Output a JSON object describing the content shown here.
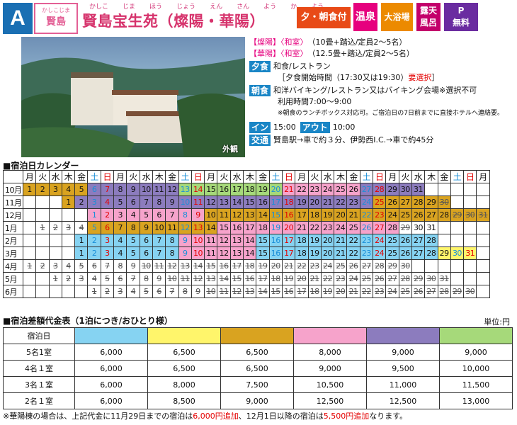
{
  "header": {
    "tag": "A",
    "area_ruby": "かしこじま",
    "area": "賢島",
    "title_ruby": [
      "かしこ",
      "じま",
      "ほう",
      "じょう",
      "えん",
      "さん",
      "よう",
      "か",
      "よう"
    ],
    "title": "賢島宝生苑（燦陽・華陽）",
    "badges": [
      "夕・朝食付",
      "温泉",
      "大浴場",
      "露天",
      "風呂",
      "P",
      "無料"
    ]
  },
  "photo_caption": "外観",
  "info": {
    "rooms": [
      {
        "label": "【燦陽】〈和室〉",
        "text": "（10畳+踏込/定員2～5名）"
      },
      {
        "label": "【華陽】〈和室〉",
        "text": "（12.5畳+踏込/定員2～5名）"
      }
    ],
    "dinner_label": "夕食",
    "dinner": "和食/レストラン",
    "dinner_time": "［夕食開始時間（17:30又は19:30）",
    "dinner_req": "要選択",
    "dinner_end": "］",
    "breakfast_label": "朝食",
    "breakfast": "和洋バイキング/レストラン又はバイキング会場※選択不可",
    "breakfast_time": "利用時間7:00～9:00",
    "breakfast_note": "※朝食のランチボックス対応可。ご宿泊日の7日前までに直接ホテルへ連絡要。",
    "in_label": "イン",
    "in_time": "15:00",
    "out_label": "アウト",
    "out_time": "10:00",
    "access_label": "交通",
    "access": "賢島駅→車で約３分、伊勢西I.C.→車で約45分"
  },
  "calendar": {
    "title": "■宿泊日カレンダー",
    "weekdays": [
      "月",
      "火",
      "水",
      "木",
      "金",
      "土",
      "日",
      "月",
      "火",
      "水",
      "木",
      "金",
      "土",
      "日",
      "月",
      "火",
      "水",
      "木",
      "金",
      "土",
      "日",
      "月",
      "火",
      "水",
      "木",
      "金",
      "土",
      "日",
      "月",
      "火",
      "水",
      "木",
      "金",
      "土",
      "日",
      "月"
    ],
    "months": [
      {
        "name": "10月",
        "offset": 0,
        "days": 31,
        "colors": "33333555555566666666444444555555",
        "cross": []
      },
      {
        "name": "11月",
        "offset": 3,
        "days": 30,
        "colors": "355555555555555555555555333333",
        "cross": [
          30
        ]
      },
      {
        "name": "12月",
        "offset": 5,
        "days": 31,
        "colors": "44444444433333333333333333333333",
        "cross": [
          29,
          30,
          31
        ]
      },
      {
        "name": "1月",
        "offset": 1,
        "days": 31,
        "colors": "0000333333333344444444444444000",
        "cross": [
          1,
          2,
          3,
          4,
          29
        ]
      },
      {
        "name": "2月",
        "offset": 4,
        "days": 28,
        "colors": "1111111144444411111111111111",
        "cross": []
      },
      {
        "name": "3月",
        "offset": 4,
        "days": 31,
        "colors": "1111111144444411111111111111222",
        "cross": []
      },
      {
        "name": "4月",
        "offset": 0,
        "days": 30,
        "colors": "000000000000000000000000000000",
        "cross": "all"
      },
      {
        "name": "5月",
        "offset": 2,
        "days": 31,
        "colors": "0000000000000000000000000000000",
        "cross": "all"
      },
      {
        "name": "6月",
        "offset": 5,
        "days": 30,
        "colors": "000000000000000000000000000000",
        "cross": "all"
      }
    ]
  },
  "price": {
    "title": "■宿泊差額代金表（1泊につき/おひとり様）",
    "unit": "単位:円",
    "header": "宿泊日",
    "colors": [
      "#86d3f2",
      "#fff56b",
      "#d9a320",
      "#f6a3cb",
      "#8c7cbe",
      "#a6d97a"
    ],
    "rows": [
      {
        "label": "5名1室",
        "values": [
          "6,000",
          "6,500",
          "6,500",
          "8,000",
          "9,000",
          "9,000"
        ]
      },
      {
        "label": "4名１室",
        "values": [
          "6,000",
          "6,500",
          "6,500",
          "9,000",
          "9,500",
          "10,000"
        ]
      },
      {
        "label": "3名１室",
        "values": [
          "6,000",
          "8,000",
          "7,500",
          "10,500",
          "11,000",
          "11,500"
        ]
      },
      {
        "label": "2名１室",
        "values": [
          "6,000",
          "8,500",
          "9,000",
          "12,500",
          "12,500",
          "13,000"
        ]
      }
    ]
  },
  "note": {
    "pre": "※華陽棟の場合は、上記代金に11月29日までの宿泊は",
    "a1": "6,000円追加",
    "mid": "、12月1日以降の宿泊は",
    "a2": "5,500円追加",
    "post": "なります。"
  }
}
